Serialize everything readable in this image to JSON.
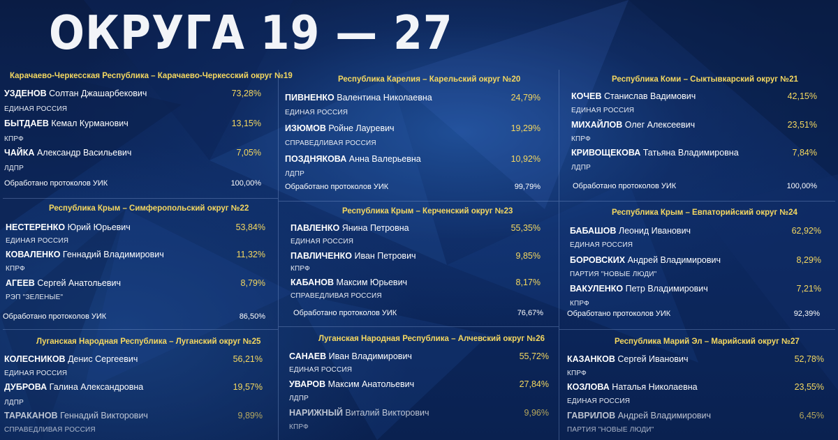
{
  "headline": "ОКРУГА 19 — 27",
  "proto_label": "Обработано протоколов УИК",
  "districts": [
    {
      "title": "Карачаево-Черкесская Республика – Карачаево-Черкесский округ №19",
      "candidates": [
        {
          "surname": "УЗДЕНОВ",
          "name": "Солтан Джашарбекович",
          "pct": "73,28%",
          "party": "ЕДИНАЯ РОССИЯ"
        },
        {
          "surname": "БЫТДАЕВ",
          "name": "Кемал Курманович",
          "pct": "13,15%",
          "party": "КПРФ"
        },
        {
          "surname": "ЧАЙКА",
          "name": "Александр Васильевич",
          "pct": "7,05%",
          "party": "ЛДПР"
        }
      ],
      "protocols": "100,00%"
    },
    {
      "title": "Республика Карелия – Карельский округ №20",
      "candidates": [
        {
          "surname": "ПИВНЕНКО",
          "name": "Валентина Николаевна",
          "pct": "24,79%",
          "party": "ЕДИНАЯ РОССИЯ"
        },
        {
          "surname": "ИЗЮМОВ",
          "name": "Ройне Лауревич",
          "pct": "19,29%",
          "party": "СПРАВЕДЛИВАЯ РОССИЯ"
        },
        {
          "surname": "ПОЗДНЯКОВА",
          "name": "Анна Валерьевна",
          "pct": "10,92%",
          "party": "ЛДПР"
        }
      ],
      "protocols": "99,79%"
    },
    {
      "title": "Республика Коми – Сыктывкарский округ №21",
      "candidates": [
        {
          "surname": "КОЧЕВ",
          "name": "Станислав Вадимович",
          "pct": "42,15%",
          "party": "ЕДИНАЯ РОССИЯ"
        },
        {
          "surname": "МИХАЙЛОВ",
          "name": "Олег Алексеевич",
          "pct": "23,51%",
          "party": "КПРФ"
        },
        {
          "surname": "КРИВОЩЕКОВА",
          "name": "Татьяна Владимировна",
          "pct": "7,84%",
          "party": "ЛДПР"
        }
      ],
      "protocols": "100,00%"
    },
    {
      "title": "Республика Крым – Симферопольский округ №22",
      "candidates": [
        {
          "surname": "НЕСТЕРЕНКО",
          "name": "Юрий Юрьевич",
          "pct": "53,84%",
          "party": "ЕДИНАЯ РОССИЯ"
        },
        {
          "surname": "КОВАЛЕНКО",
          "name": "Геннадий Владимирович",
          "pct": "11,32%",
          "party": "КПРФ"
        },
        {
          "surname": "АГЕЕВ",
          "name": "Сергей Анатольевич",
          "pct": "8,79%",
          "party": "РЭП \"ЗЕЛЕНЫЕ\""
        }
      ],
      "protocols": "86,50%"
    },
    {
      "title": "Республика Крым – Керченский округ №23",
      "candidates": [
        {
          "surname": "ПАВЛЕНКО",
          "name": "Янина Петровна",
          "pct": "55,35%",
          "party": "ЕДИНАЯ РОССИЯ"
        },
        {
          "surname": "ПАВЛИЧЕНКО",
          "name": "Иван Петрович",
          "pct": "9,85%",
          "party": "КПРФ"
        },
        {
          "surname": "КАБАНОВ",
          "name": "Максим Юрьевич",
          "pct": "8,17%",
          "party": "СПРАВЕДЛИВАЯ РОССИЯ"
        }
      ],
      "protocols": "76,67%"
    },
    {
      "title": "Республика Крым – Евпаторийский округ №24",
      "candidates": [
        {
          "surname": "БАБАШОВ",
          "name": "Леонид Иванович",
          "pct": "62,92%",
          "party": "ЕДИНАЯ РОССИЯ"
        },
        {
          "surname": "БОРОВСКИХ",
          "name": "Андрей Владимирович",
          "pct": "8,29%",
          "party": "ПАРТИЯ \"НОВЫЕ ЛЮДИ\""
        },
        {
          "surname": "ВАКУЛЕНКО",
          "name": "Петр Владимирович",
          "pct": "7,21%",
          "party": "КПРФ"
        }
      ],
      "protocols": "92,39%"
    },
    {
      "title": "Луганская Народная Республика – Луганский округ №25",
      "candidates": [
        {
          "surname": "КОЛЕСНИКОВ",
          "name": "Денис Сергеевич",
          "pct": "56,21%",
          "party": "ЕДИНАЯ РОССИЯ"
        },
        {
          "surname": "ДУБРОВА",
          "name": "Галина Александровна",
          "pct": "19,57%",
          "party": "ЛДПР"
        },
        {
          "surname": "ТАРАКАНОВ",
          "name": "Геннадий Викторович",
          "pct": "9,89%",
          "party": "СПРАВЕДЛИВАЯ РОССИЯ"
        }
      ]
    },
    {
      "title": "Луганская Народная Республика – Алчевский округ №26",
      "candidates": [
        {
          "surname": "САНАЕВ",
          "name": "Иван Владимирович",
          "pct": "55,72%",
          "party": "ЕДИНАЯ РОССИЯ"
        },
        {
          "surname": "УВАРОВ",
          "name": "Максим Анатольевич",
          "pct": "27,84%",
          "party": "ЛДПР"
        },
        {
          "surname": "НАРИЖНЫЙ",
          "name": "Виталий Викторович",
          "pct": "9,96%",
          "party": "КПРФ"
        }
      ]
    },
    {
      "title": "Республика Марий Эл – Марийский округ №27",
      "candidates": [
        {
          "surname": "КАЗАНКОВ",
          "name": "Сергей Иванович",
          "pct": "52,78%",
          "party": "КПРФ"
        },
        {
          "surname": "КОЗЛОВА",
          "name": "Наталья Николаевна",
          "pct": "23,55%",
          "party": "ЕДИНАЯ РОССИЯ"
        },
        {
          "surname": "ГАВРИЛОВ",
          "name": "Андрей Владимирович",
          "pct": "6,45%",
          "party": "ПАРТИЯ \"НОВЫЕ ЛЮДИ\""
        }
      ]
    }
  ]
}
